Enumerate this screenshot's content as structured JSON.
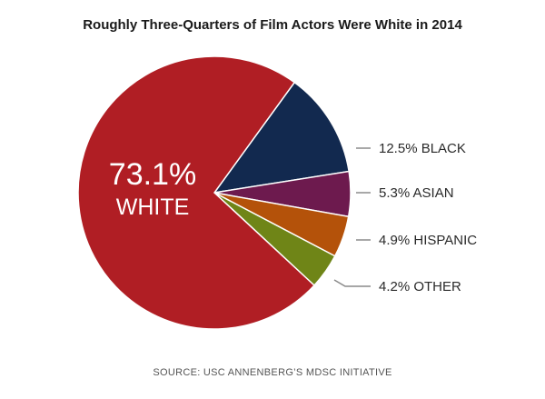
{
  "chart_data": {
    "type": "pie",
    "title": "Roughly Three-Quarters of Film Actors Were White in 2014",
    "source": "SOURCE: USC ANNENBERG’S MDSC INITIATIVE",
    "slices": [
      {
        "name": "WHITE",
        "value": 73.1,
        "label": "73.1%",
        "label2": "WHITE",
        "color": "#b01e24"
      },
      {
        "name": "BLACK",
        "value": 12.5,
        "label": "12.5% BLACK",
        "color": "#12294f"
      },
      {
        "name": "ASIAN",
        "value": 5.3,
        "label": "5.3% ASIAN",
        "color": "#6d1a4e"
      },
      {
        "name": "HISPANIC",
        "value": 4.9,
        "label": "4.9% HISPANIC",
        "color": "#b4520a"
      },
      {
        "name": "OTHER",
        "value": 4.2,
        "label": "4.2% OTHER",
        "color": "#6f8517"
      }
    ],
    "legend": "none"
  }
}
